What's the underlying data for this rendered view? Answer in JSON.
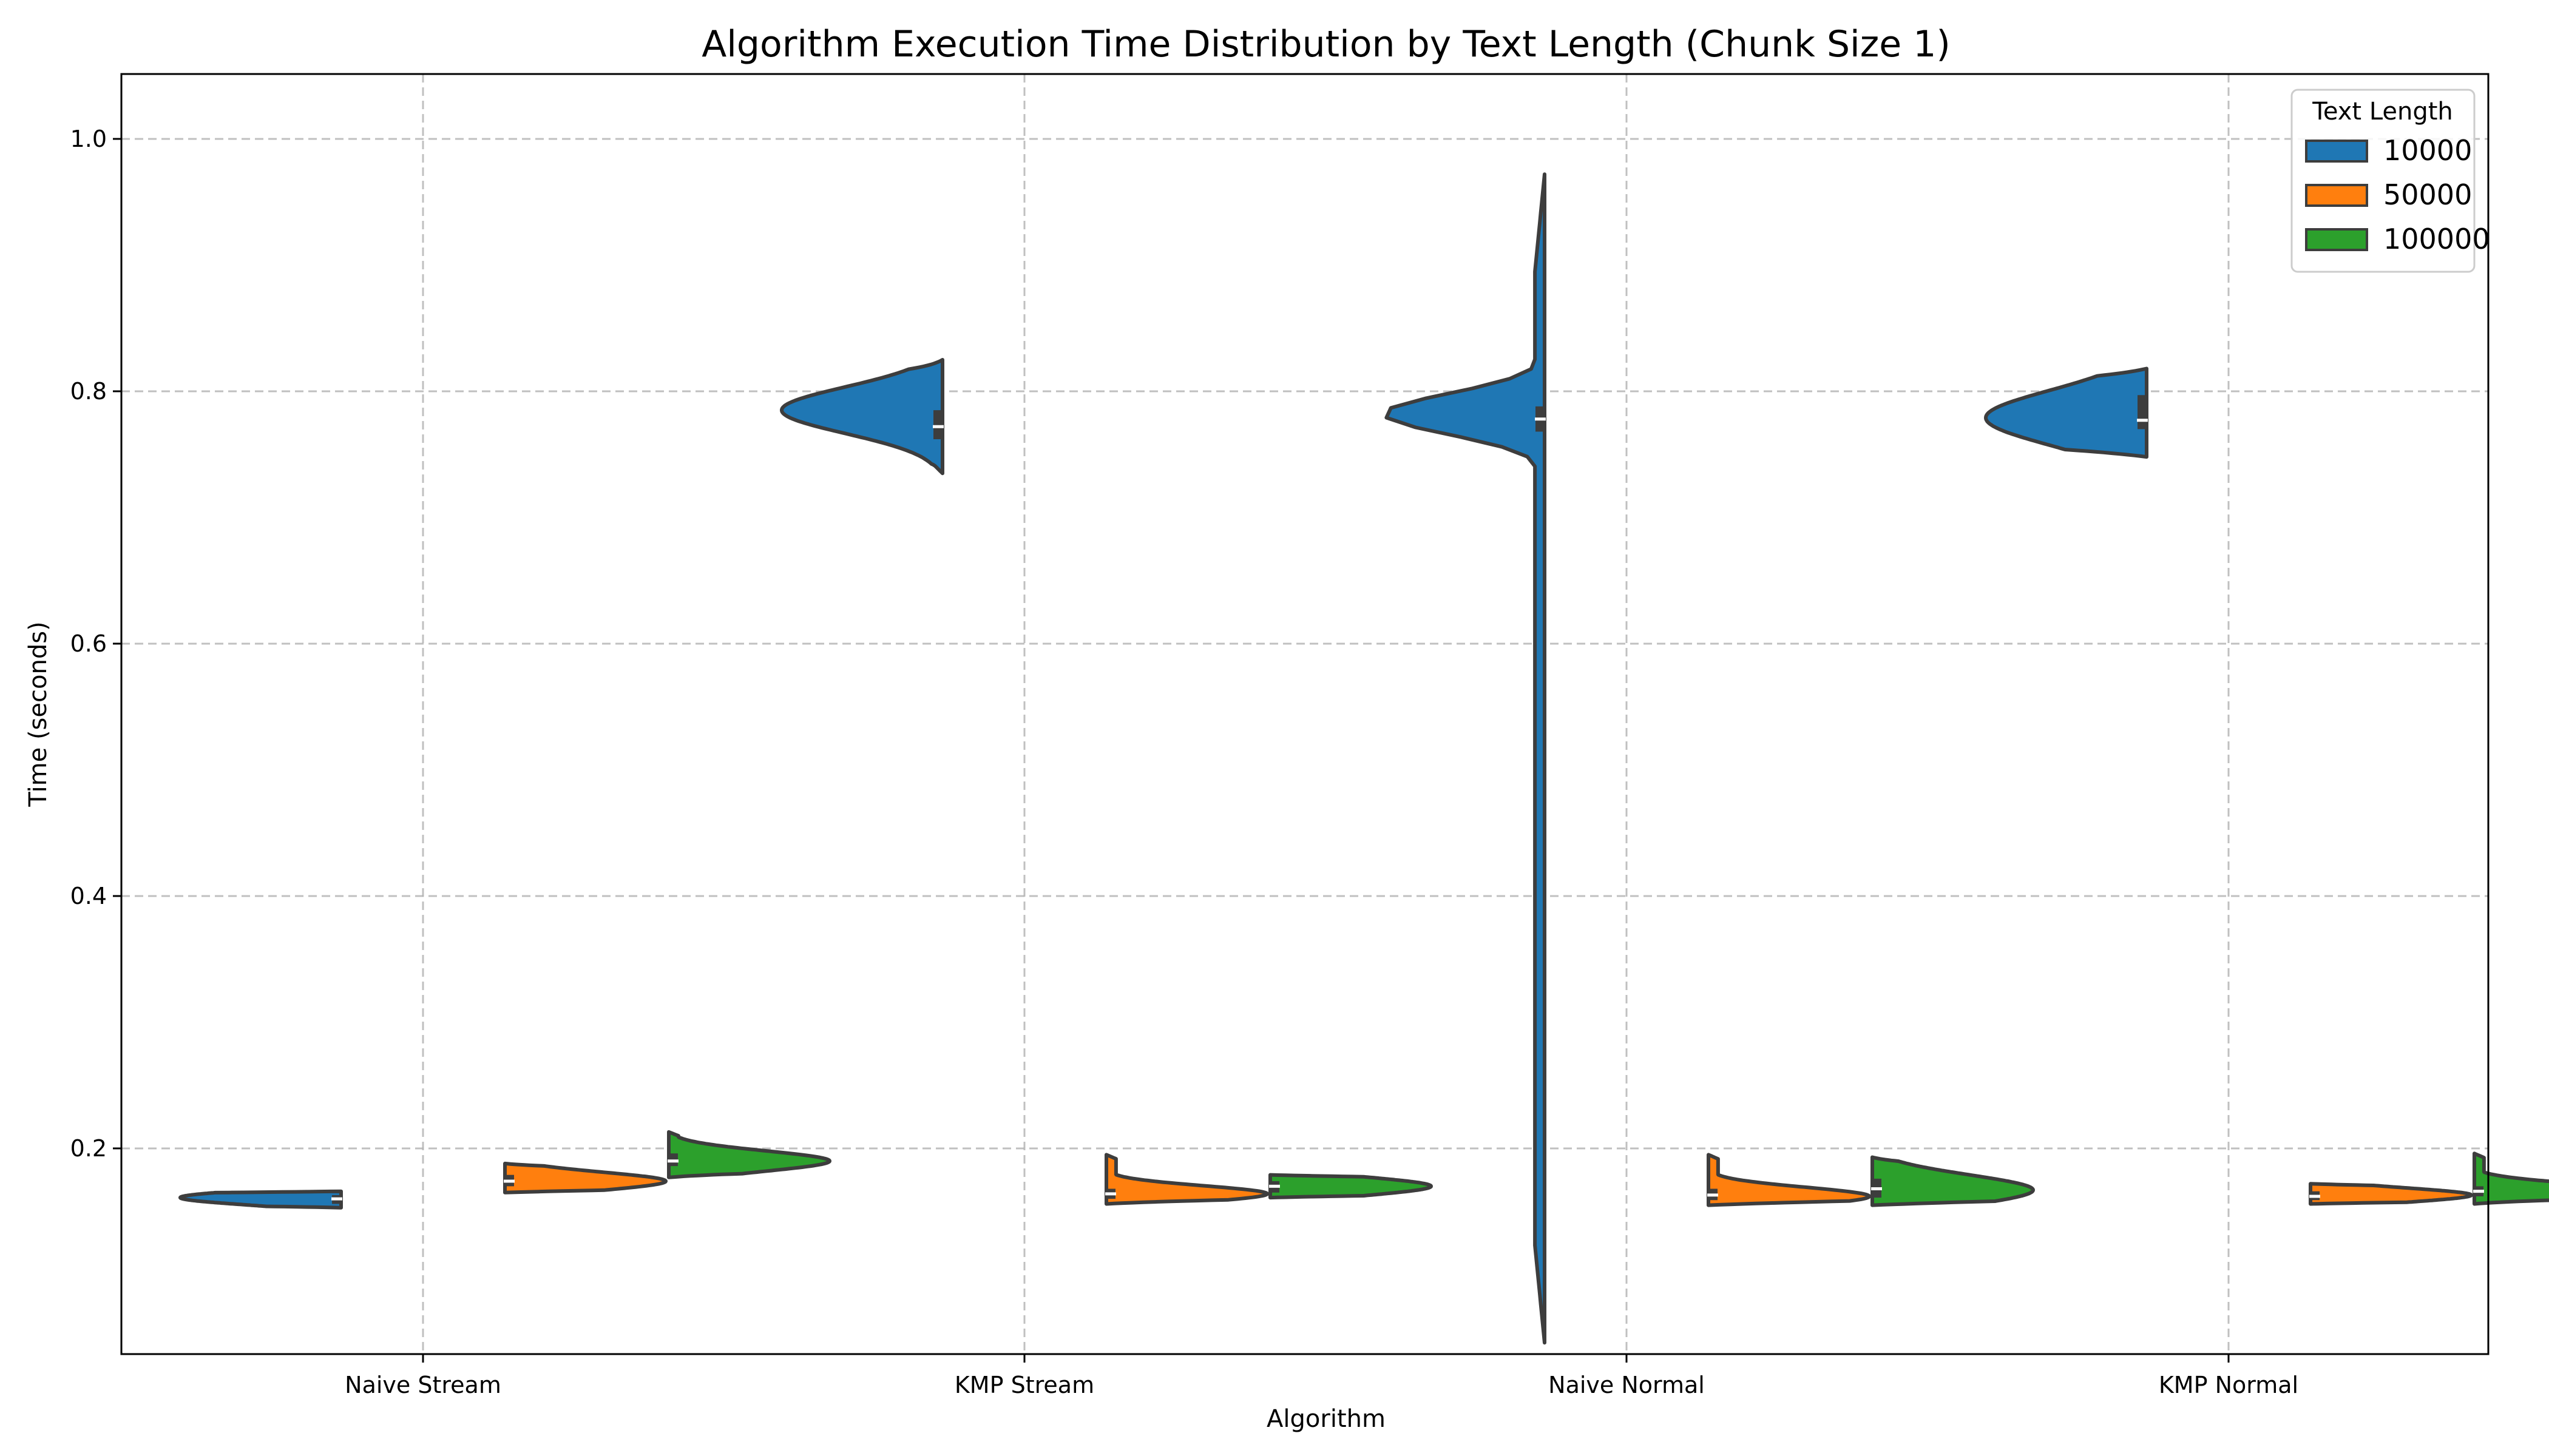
{
  "chart_data": {
    "type": "violin",
    "title": "Algorithm Execution Time Distribution by Text Length (Chunk Size 1)",
    "xlabel": "Algorithm",
    "ylabel": "Time (seconds)",
    "categories": [
      "Naive Stream",
      "KMP Stream",
      "Naive Normal",
      "KMP Normal"
    ],
    "ylim": [
      0,
      1.02
    ],
    "yticks": [
      "0.2",
      "0.4",
      "0.6",
      "0.8",
      "1.0"
    ],
    "ytick_values": [
      0.2,
      0.4,
      0.6,
      0.8,
      1.0
    ],
    "grid": true,
    "split": true,
    "legend": {
      "title": "Text Length",
      "position": "top-right"
    },
    "series": [
      {
        "name": "10000",
        "color": "#1f77b4",
        "stats": [
          {
            "category": "Naive Stream",
            "min": 0.153,
            "q1": 0.156,
            "median": 0.16,
            "q3": 0.163,
            "max": 0.166,
            "peak": 0.161
          },
          {
            "category": "KMP Stream",
            "min": 0.735,
            "q1": 0.762,
            "median": 0.772,
            "q3": 0.785,
            "max": 0.825,
            "peak": 0.785
          },
          {
            "category": "Naive Normal",
            "min": 0.046,
            "q1": 0.768,
            "median": 0.778,
            "q3": 0.788,
            "max": 0.972,
            "peak": 0.782
          },
          {
            "category": "KMP Normal",
            "min": 0.748,
            "q1": 0.77,
            "median": 0.777,
            "q3": 0.797,
            "max": 0.818,
            "peak": 0.779
          }
        ]
      },
      {
        "name": "50000",
        "color": "#ff7f0e",
        "stats": [
          {
            "category": "Naive Stream",
            "min": 0.165,
            "q1": 0.17,
            "median": 0.174,
            "q3": 0.179,
            "max": 0.188,
            "peak": 0.174
          },
          {
            "category": "KMP Stream",
            "min": 0.156,
            "q1": 0.16,
            "median": 0.164,
            "q3": 0.168,
            "max": 0.195,
            "peak": 0.164
          },
          {
            "category": "Naive Normal",
            "min": 0.155,
            "q1": 0.159,
            "median": 0.163,
            "q3": 0.168,
            "max": 0.195,
            "peak": 0.162
          },
          {
            "category": "KMP Normal",
            "min": 0.156,
            "q1": 0.159,
            "median": 0.162,
            "q3": 0.166,
            "max": 0.172,
            "peak": 0.163
          }
        ]
      },
      {
        "name": "100000",
        "color": "#2ca02c",
        "stats": [
          {
            "category": "Naive Stream",
            "min": 0.177,
            "q1": 0.186,
            "median": 0.19,
            "q3": 0.196,
            "max": 0.213,
            "peak": 0.19
          },
          {
            "category": "KMP Stream",
            "min": 0.161,
            "q1": 0.165,
            "median": 0.17,
            "q3": 0.174,
            "max": 0.179,
            "peak": 0.17
          },
          {
            "category": "Naive Normal",
            "min": 0.155,
            "q1": 0.161,
            "median": 0.168,
            "q3": 0.176,
            "max": 0.193,
            "peak": 0.167
          },
          {
            "category": "KMP Normal",
            "min": 0.156,
            "q1": 0.162,
            "median": 0.166,
            "q3": 0.17,
            "max": 0.196,
            "peak": 0.166
          }
        ]
      }
    ]
  }
}
